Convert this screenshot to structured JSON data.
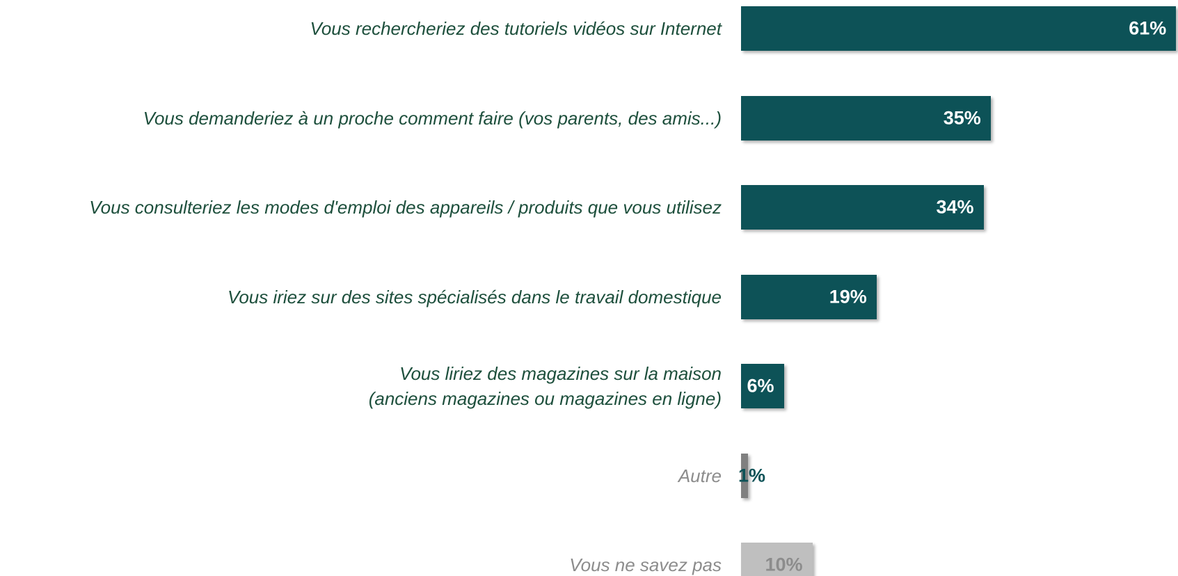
{
  "chart_data": {
    "type": "barh",
    "categories": [
      "Vous rechercheriez des tutoriels vidéos sur Internet",
      "Vous demanderiez à un proche comment faire (vos parents, des amis...)",
      "Vous consulteriez les modes d'emploi des appareils / produits que vous utilisez",
      "Vous iriez sur des sites spécialisés dans le travail domestique",
      "Vous liriez des magazines sur la maison\n(anciens magazines ou magazines en ligne)",
      "Autre",
      "Vous ne savez pas"
    ],
    "values": [
      61,
      35,
      34,
      19,
      6,
      1,
      10
    ],
    "value_labels": [
      "61%",
      "35%",
      "34%",
      "19%",
      "6%",
      "1%",
      "10%"
    ],
    "colors": [
      "#0d5257",
      "#0d5257",
      "#0d5257",
      "#0d5257",
      "#0d5257",
      "#808080",
      "#bfbfbf"
    ],
    "category_colors": [
      "#1d4f3c",
      "#1d4f3c",
      "#1d4f3c",
      "#1d4f3c",
      "#1d4f3c",
      "#8c8c8c",
      "#8c8c8c"
    ],
    "value_label_colors": [
      "#ffffff",
      "#ffffff",
      "#ffffff",
      "#ffffff",
      "#ffffff",
      "#0d5257",
      "#8c8c8c"
    ]
  }
}
